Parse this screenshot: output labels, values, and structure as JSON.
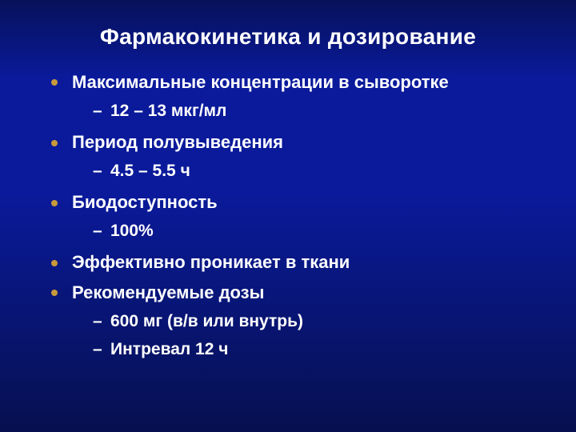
{
  "colors": {
    "text": "#ffffff",
    "bullet": "#c79a3b",
    "bg_top": "#07115a",
    "bg_mid": "#0a1a9a",
    "bg_bottom": "#06104f"
  },
  "title": "Фармакокинетика и дозирование",
  "items": [
    {
      "label": "Максимальные концентрации в сыворотке",
      "sub": [
        "12 – 13 мкг/мл"
      ]
    },
    {
      "label": "Период полувыведения",
      "sub": [
        "4.5 – 5.5 ч"
      ]
    },
    {
      "label": "Биодоступность",
      "sub": [
        "100%"
      ]
    },
    {
      "label": "Эффективно проникает в ткани",
      "sub": []
    },
    {
      "label": "Рекомендуемые дозы",
      "sub": [
        "600 мг (в/в или внутрь)",
        "Интревал 12 ч"
      ]
    }
  ],
  "typography": {
    "title_fontsize": 28,
    "item_fontsize": 22,
    "sub_fontsize": 21,
    "font_family": "Arial"
  }
}
